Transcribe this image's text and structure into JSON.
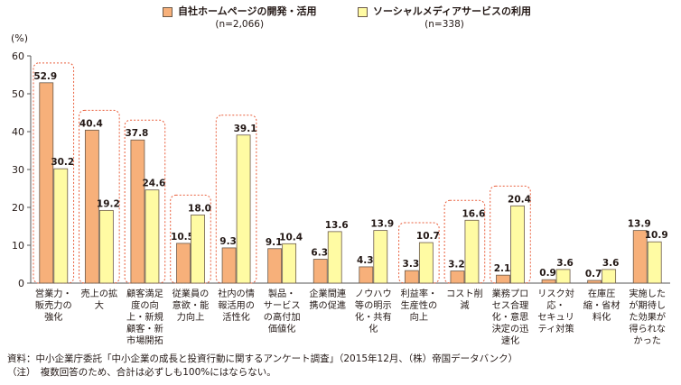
{
  "colors": {
    "series1": "#F7B07A",
    "series2": "#FFFBA3",
    "bar_stroke": "#6B5A4A",
    "highlight": "#E95F3C",
    "axis": "#555555",
    "text": "#231815"
  },
  "legend": [
    {
      "label": "自社ホームページの開発・活用",
      "n": "(n=2,066)"
    },
    {
      "label": "ソーシャルメディアサービスの利用",
      "n": "(n=338)"
    }
  ],
  "unit_label": "(%)",
  "source": {
    "line1": "資料：中小企業庁委託「中小企業の成長と投資行動に関するアンケート調査」（2015年12月、（株）帝国データバンク）",
    "line2": "（注）　複数回答のため、合計は必ずしも100%にはならない。"
  },
  "chart_data": {
    "type": "bar",
    "ylim": [
      0,
      60
    ],
    "yticks": [
      0,
      10,
      20,
      30,
      40,
      50,
      60
    ],
    "grid": false,
    "legend_position": "top-center",
    "categories": [
      [
        "営業力・",
        "販売力の",
        "強化"
      ],
      [
        "売上の拡",
        "大"
      ],
      [
        "顧客満足",
        "度の向",
        "上・新規",
        "顧客・新",
        "市場開拓"
      ],
      [
        "従業員の",
        "意欲・能",
        "力向上"
      ],
      [
        "社内の情",
        "報活用の",
        "活性化"
      ],
      [
        "製品・",
        "サービス",
        "の高付加",
        "価値化"
      ],
      [
        "企業間連",
        "携の促進"
      ],
      [
        "ノウハウ",
        "等の明示",
        "化・共有",
        "化"
      ],
      [
        "利益率・",
        "生産性の",
        "向上"
      ],
      [
        "コスト削",
        "減"
      ],
      [
        "業務プロ",
        "セス合理",
        "化・意思",
        "決定の迅",
        "速化"
      ],
      [
        "リスク対",
        "応・",
        "セキュリ",
        "ティ対策"
      ],
      [
        "在庫圧",
        "縮・省材",
        "料化"
      ],
      [
        "実施した",
        "が期待し",
        "た効果が",
        "得られな",
        "かった"
      ]
    ],
    "series": [
      {
        "name": "自社ホームページの開発・活用",
        "values": [
          52.9,
          40.4,
          37.8,
          10.5,
          9.3,
          9.1,
          6.3,
          4.3,
          3.3,
          3.2,
          2.1,
          0.9,
          0.7,
          13.9
        ]
      },
      {
        "name": "ソーシャルメディアサービスの利用",
        "values": [
          30.2,
          19.2,
          24.6,
          18.0,
          39.1,
          10.4,
          13.6,
          13.9,
          10.7,
          16.6,
          20.4,
          3.6,
          3.6,
          10.9
        ]
      }
    ],
    "highlighted_categories": [
      0,
      1,
      2,
      3,
      4,
      8,
      9,
      10
    ]
  }
}
